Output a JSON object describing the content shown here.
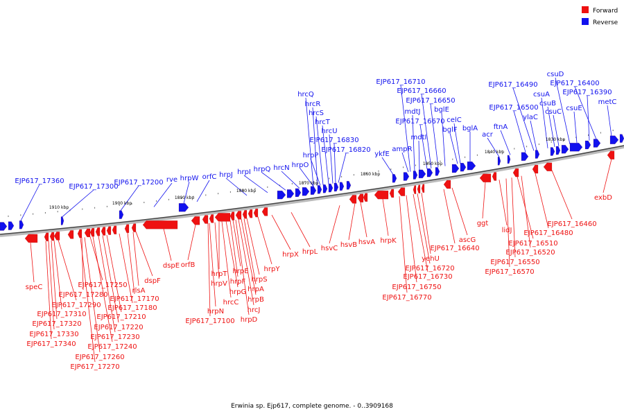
{
  "caption": "Erwinia sp. Ejp617, complete genome. - 0..3909168",
  "legend": [
    {
      "label": "Forward",
      "color": "#ee1111"
    },
    {
      "label": "Reverse",
      "color": "#1111ee"
    }
  ],
  "scale_labels": [
    "1910 kbp",
    "1900 kbp",
    "1890 kbp",
    "1880 kbp",
    "1870 kbp",
    "1860 kbp",
    "1850 kbp",
    "1840 kbp",
    "1830 kbp"
  ],
  "reverse_labels": [
    "EJP617_17360",
    "EJP617_17300",
    "EJP617_17200",
    "rve",
    "hrpW",
    "orfC",
    "hrpJ",
    "hrpI",
    "hrpQ",
    "hrcN",
    "hrpO",
    "hrpP",
    "EJP617_16820",
    "EJP617_16830",
    "hrcU",
    "hrcT",
    "hrcS",
    "hrcR",
    "hrcQ",
    "ykfE",
    "ampR",
    "mdtI",
    "mdtJ",
    "EJP617_16670",
    "EJP617_16660",
    "EJP617_16710",
    "EJP617_16650",
    "bglE",
    "bglF",
    "celC",
    "bglA",
    "acr",
    "ftnA",
    "EJP617_16500",
    "EJP617_16490",
    "ylaC",
    "csuA",
    "csuB",
    "csuC",
    "csuE",
    "csuD",
    "EJP617_16390",
    "EJP617_16400",
    "metC"
  ],
  "forward_labels": [
    "speC",
    "EJP617_17340",
    "EJP617_17330",
    "EJP617_17320",
    "EJP617_17310",
    "EJP617_17290",
    "EJP617_17280",
    "EJP617_17270",
    "EJP617_17260",
    "EJP617_17250",
    "EJP617_17240",
    "EJP617_17230",
    "EJP617_17220",
    "EJP617_17210",
    "EJP617_17180",
    "EJP617_17170",
    "rlsA",
    "dspF",
    "dspE",
    "orfB",
    "EJP617_17100",
    "hrpN",
    "hrpV",
    "hrpT",
    "hrcC",
    "hrpG",
    "hrpF",
    "hrpE",
    "hrpD",
    "hrcJ",
    "hrpB",
    "hrpA",
    "hrpS",
    "hrpY",
    "hrpX",
    "hrpL",
    "hsvC",
    "hsvB",
    "hsvA",
    "hrpK",
    "EJP617_16770",
    "EJP617_16750",
    "EJP617_16730",
    "EJP617_16720",
    "yehU",
    "EJP617_16640",
    "ascG",
    "ggt",
    "lidJ",
    "EJP617_16570",
    "EJP617_16550",
    "EJP617_16510",
    "EJP617_16520",
    "EJP617_16480",
    "EJP617_16460",
    "exbD"
  ]
}
